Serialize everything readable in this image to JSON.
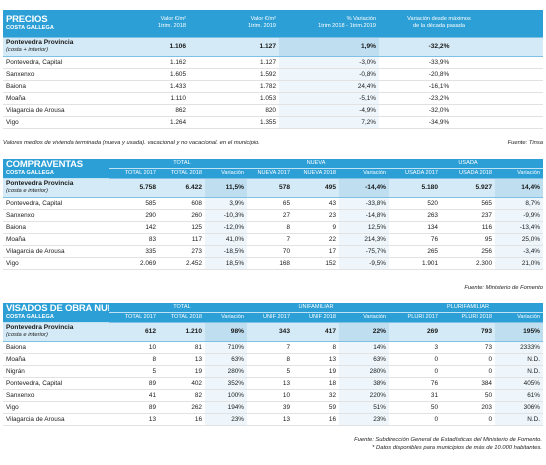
{
  "precios": {
    "title": "PRECIOS",
    "subtitle": "COSTA GALLEGA",
    "headers": [
      "Valor €/m²\n1trim. 2018",
      "Valor €/m²\n1trim. 2019",
      "% Variación\n1trim 2018 - 1trim.2019",
      "Variación desde máximos\nde la década pasada"
    ],
    "province": {
      "label": "Pontevedra Provincia",
      "sublabel": "(costa + interior)",
      "values": [
        "1.106",
        "1.127",
        "1,9%",
        "-32,2%"
      ]
    },
    "rows": [
      {
        "label": "Pontevedra, Capital",
        "values": [
          "1.162",
          "1.127",
          "-3,0%",
          "-33,9%"
        ]
      },
      {
        "label": "Sanxenxo",
        "values": [
          "1.605",
          "1.592",
          "-0,8%",
          "-20,8%"
        ]
      },
      {
        "label": "Baiona",
        "values": [
          "1.433",
          "1.782",
          "24,4%",
          "-16,1%"
        ]
      },
      {
        "label": "Moaña",
        "values": [
          "1.110",
          "1.053",
          "-5,1%",
          "-23,2%"
        ]
      },
      {
        "label": "Vilagarcia de Arousa",
        "values": [
          "862",
          "820",
          "-4,9%",
          "-32,0%"
        ]
      },
      {
        "label": "Vigo",
        "values": [
          "1.264",
          "1.355",
          "7,2%",
          "-34,9%"
        ]
      }
    ],
    "note": "Valores medios de vivienda terminada (nueva y usada). vacacional y no vacacional. en el municipio.",
    "source": "Fuente: Tinsa"
  },
  "compraventas": {
    "title": "COMPRAVENTAS",
    "subtitle": "COSTA GALLEGA",
    "groups": [
      "TOTAL",
      "NUEVA",
      "USADA"
    ],
    "headers": [
      "TOTAL 2017",
      "TOTAL 2018",
      "Variación",
      "NUEVA 2017",
      "NUEVA 2018",
      "Variación",
      "USADA 2017",
      "USADA 2018",
      "Variación"
    ],
    "province": {
      "label": "Pontevedra Provincia",
      "sublabel": "(costa e interior)",
      "values": [
        "5.758",
        "6.422",
        "11,5%",
        "578",
        "495",
        "-14,4%",
        "5.180",
        "5.927",
        "14,4%"
      ]
    },
    "rows": [
      {
        "label": "Pontevedra, Capital",
        "values": [
          "585",
          "608",
          "3,9%",
          "65",
          "43",
          "-33,8%",
          "520",
          "565",
          "8,7%"
        ]
      },
      {
        "label": "Sanxenxo",
        "values": [
          "290",
          "260",
          "-10,3%",
          "27",
          "23",
          "-14,8%",
          "263",
          "237",
          "-9,9%"
        ]
      },
      {
        "label": "Baiona",
        "values": [
          "142",
          "125",
          "-12,0%",
          "8",
          "9",
          "12,5%",
          "134",
          "116",
          "-13,4%"
        ]
      },
      {
        "label": "Moaña",
        "values": [
          "83",
          "117",
          "41,0%",
          "7",
          "22",
          "214,3%",
          "76",
          "95",
          "25,0%"
        ]
      },
      {
        "label": "Vilagarcia de Arousa",
        "values": [
          "335",
          "273",
          "-18,5%",
          "70",
          "17",
          "-75,7%",
          "265",
          "256",
          "-3,4%"
        ]
      },
      {
        "label": "Vigo",
        "values": [
          "2.069",
          "2.452",
          "18,5%",
          "168",
          "152",
          "-9,5%",
          "1.901",
          "2.300",
          "21,0%"
        ]
      }
    ],
    "source": "Fuente: Ministerio de Fomento"
  },
  "visados": {
    "title": "VISADOS DE OBRA NUEVA",
    "subtitle": "COSTA GALLEGA",
    "groups": [
      "TOTAL",
      "UNIFAMILIAR",
      "PLURIFAMILIAR"
    ],
    "headers": [
      "TOTAL 2017",
      "TOTAL 2018",
      "Variación",
      "UNIF 2017",
      "UNIF 2018",
      "Variación",
      "PLURI 2017",
      "PLURI 2018",
      "Variación"
    ],
    "province": {
      "label": "Pontevedra Provincia",
      "sublabel": "(costa e interior)",
      "values": [
        "612",
        "1.210",
        "98%",
        "343",
        "417",
        "22%",
        "269",
        "793",
        "195%"
      ]
    },
    "rows": [
      {
        "label": "Baiona",
        "values": [
          "10",
          "81",
          "710%",
          "7",
          "8",
          "14%",
          "3",
          "73",
          "2333%"
        ]
      },
      {
        "label": "Moaña",
        "values": [
          "8",
          "13",
          "63%",
          "8",
          "13",
          "63%",
          "0",
          "0",
          "N.D."
        ]
      },
      {
        "label": "Nigrán",
        "values": [
          "5",
          "19",
          "280%",
          "5",
          "19",
          "280%",
          "0",
          "0",
          "N.D."
        ]
      },
      {
        "label": "Pontevedra, Capital",
        "values": [
          "89",
          "402",
          "352%",
          "13",
          "18",
          "38%",
          "76",
          "384",
          "405%"
        ]
      },
      {
        "label": "Sanxenxo",
        "values": [
          "41",
          "82",
          "100%",
          "10",
          "32",
          "220%",
          "31",
          "50",
          "61%"
        ]
      },
      {
        "label": "Vigo",
        "values": [
          "89",
          "262",
          "194%",
          "39",
          "59",
          "51%",
          "50",
          "203",
          "306%"
        ]
      },
      {
        "label": "Vilagarcia de Arousa",
        "values": [
          "13",
          "16",
          "23%",
          "13",
          "16",
          "23%",
          "0",
          "0",
          "N.D."
        ]
      }
    ],
    "source": "Fuente: Subdirección General de Estadísticas del Ministerio de Fomento.",
    "footnote": "* Datos disponibles para municipios de más de 10.000 habitantes."
  }
}
